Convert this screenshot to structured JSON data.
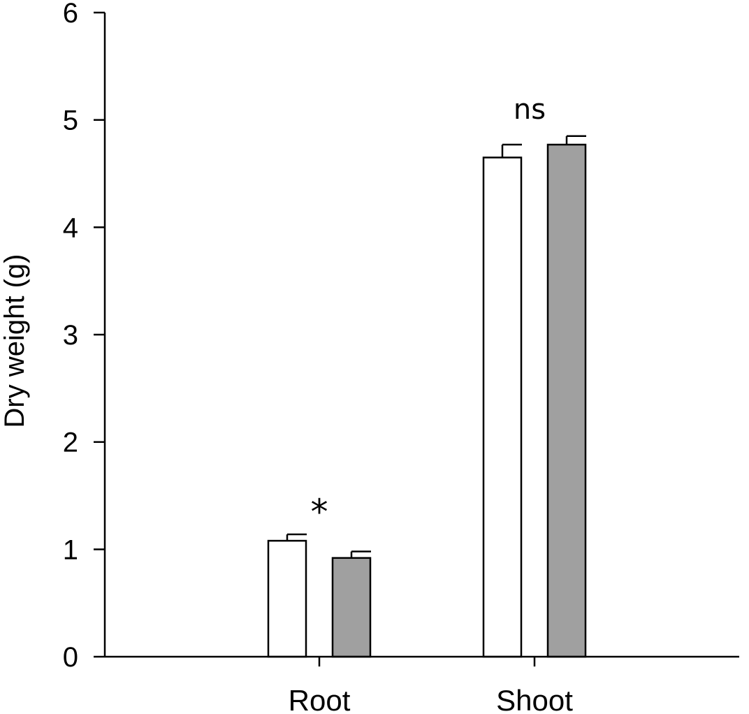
{
  "chart_data": {
    "type": "bar",
    "title": "",
    "xlabel": "",
    "ylabel": "Dry weight (g)",
    "categories": [
      "Root",
      "Shoot"
    ],
    "ylim": [
      0,
      6
    ],
    "yticks": [
      "0",
      "1",
      "2",
      "3",
      "4",
      "5",
      "6"
    ],
    "grid": false,
    "series": [
      {
        "values": [
          1.08,
          4.65
        ],
        "errors": [
          0.06,
          0.12
        ],
        "color": "#ffffff"
      },
      {
        "values": [
          0.92,
          4.77
        ],
        "errors": [
          0.06,
          0.08
        ],
        "color": "#a0a0a0"
      }
    ],
    "annotations": [
      "*",
      "ns"
    ]
  }
}
